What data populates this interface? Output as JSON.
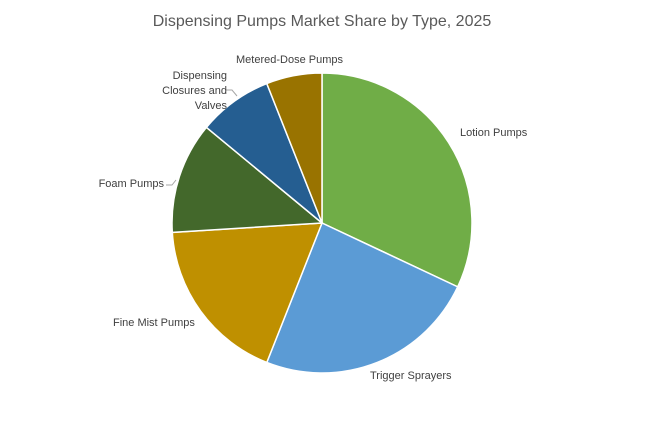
{
  "chart_data": {
    "type": "pie",
    "title": "Dispensing Pumps Market Share by Type, 2025",
    "categories": [
      "Lotion Pumps",
      "Trigger Sprayers",
      "Fine Mist Pumps",
      "Foam Pumps",
      "Dispensing Closures and Valves",
      "Metered-Dose Pumps"
    ],
    "values": [
      32,
      24,
      18,
      12,
      8,
      6
    ],
    "colors": [
      "#70ad47",
      "#5b9bd5",
      "#bf9000",
      "#43682b",
      "#255e91",
      "#997300"
    ]
  }
}
